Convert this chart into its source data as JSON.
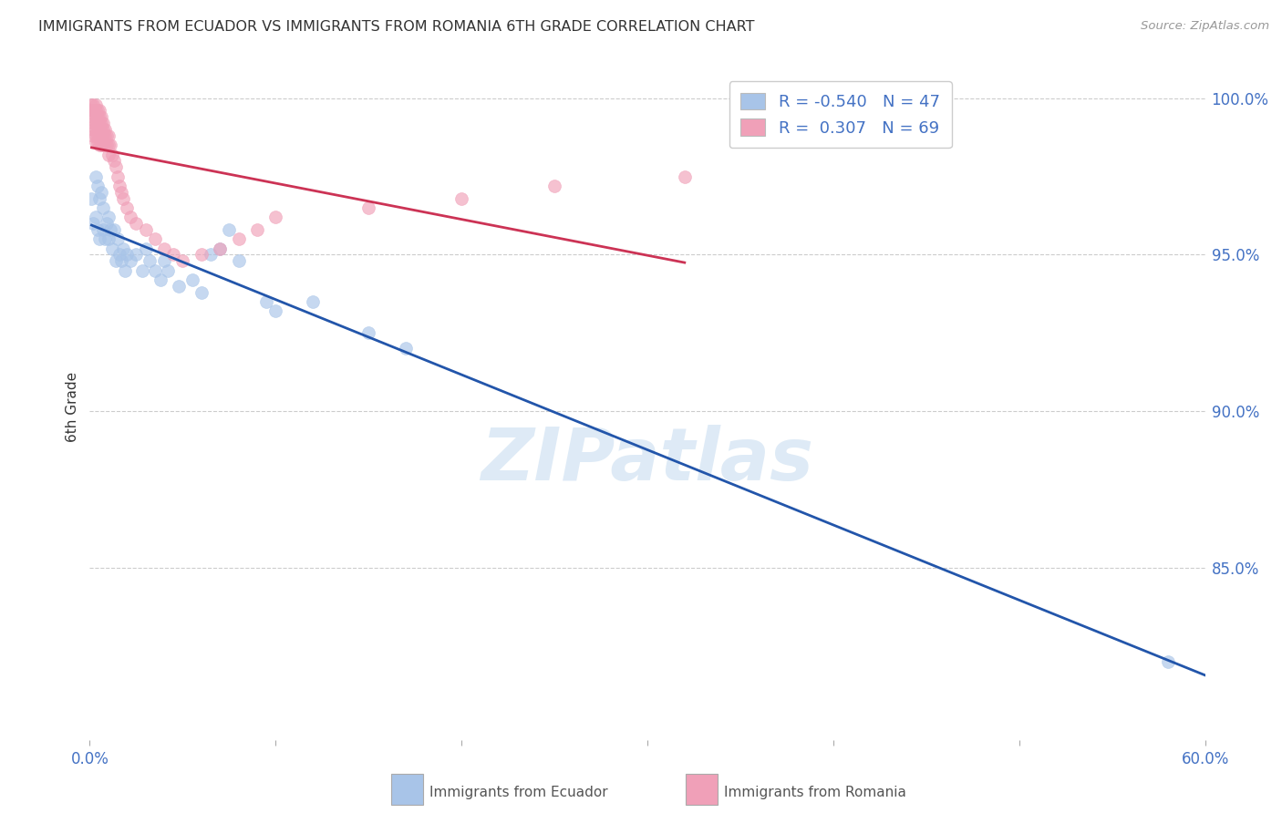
{
  "title": "IMMIGRANTS FROM ECUADOR VS IMMIGRANTS FROM ROMANIA 6TH GRADE CORRELATION CHART",
  "source": "Source: ZipAtlas.com",
  "ylabel": "6th Grade",
  "xlim": [
    0.0,
    0.6
  ],
  "ylim": [
    0.795,
    1.008
  ],
  "yticks_right": [
    0.85,
    0.9,
    0.95,
    1.0
  ],
  "ytick_right_labels": [
    "85.0%",
    "90.0%",
    "95.0%",
    "100.0%"
  ],
  "legend_r_ecuador": "-0.540",
  "legend_n_ecuador": "47",
  "legend_r_romania": "0.307",
  "legend_n_romania": "69",
  "ecuador_color": "#a8c4e8",
  "romania_color": "#f0a0b8",
  "ecuador_line_color": "#2255aa",
  "romania_line_color": "#cc3355",
  "background_color": "#ffffff",
  "watermark_text": "ZIPatlas",
  "ecuador_x": [
    0.001,
    0.002,
    0.003,
    0.003,
    0.004,
    0.004,
    0.005,
    0.005,
    0.006,
    0.007,
    0.007,
    0.008,
    0.009,
    0.01,
    0.01,
    0.011,
    0.012,
    0.013,
    0.014,
    0.015,
    0.016,
    0.017,
    0.018,
    0.019,
    0.02,
    0.022,
    0.025,
    0.028,
    0.03,
    0.032,
    0.035,
    0.038,
    0.04,
    0.042,
    0.048,
    0.055,
    0.06,
    0.065,
    0.07,
    0.075,
    0.08,
    0.095,
    0.1,
    0.12,
    0.15,
    0.17,
    0.58
  ],
  "ecuador_y": [
    0.968,
    0.96,
    0.975,
    0.962,
    0.972,
    0.958,
    0.968,
    0.955,
    0.97,
    0.965,
    0.958,
    0.955,
    0.96,
    0.962,
    0.955,
    0.958,
    0.952,
    0.958,
    0.948,
    0.955,
    0.95,
    0.948,
    0.952,
    0.945,
    0.95,
    0.948,
    0.95,
    0.945,
    0.952,
    0.948,
    0.945,
    0.942,
    0.948,
    0.945,
    0.94,
    0.942,
    0.938,
    0.95,
    0.952,
    0.958,
    0.948,
    0.935,
    0.932,
    0.935,
    0.925,
    0.92,
    0.82
  ],
  "romania_x": [
    0.001,
    0.001,
    0.001,
    0.002,
    0.002,
    0.002,
    0.002,
    0.002,
    0.003,
    0.003,
    0.003,
    0.003,
    0.003,
    0.003,
    0.003,
    0.004,
    0.004,
    0.004,
    0.004,
    0.004,
    0.004,
    0.005,
    0.005,
    0.005,
    0.005,
    0.005,
    0.005,
    0.006,
    0.006,
    0.006,
    0.006,
    0.006,
    0.007,
    0.007,
    0.007,
    0.007,
    0.008,
    0.008,
    0.008,
    0.009,
    0.009,
    0.01,
    0.01,
    0.01,
    0.011,
    0.012,
    0.013,
    0.014,
    0.015,
    0.016,
    0.017,
    0.018,
    0.02,
    0.022,
    0.025,
    0.03,
    0.035,
    0.04,
    0.045,
    0.05,
    0.06,
    0.07,
    0.08,
    0.09,
    0.1,
    0.15,
    0.2,
    0.25,
    0.32
  ],
  "romania_y": [
    0.998,
    0.996,
    0.994,
    0.998,
    0.996,
    0.992,
    0.99,
    0.988,
    0.998,
    0.996,
    0.994,
    0.992,
    0.99,
    0.988,
    0.986,
    0.996,
    0.994,
    0.992,
    0.99,
    0.988,
    0.986,
    0.996,
    0.994,
    0.992,
    0.99,
    0.988,
    0.985,
    0.994,
    0.992,
    0.99,
    0.988,
    0.985,
    0.992,
    0.99,
    0.988,
    0.985,
    0.99,
    0.988,
    0.985,
    0.988,
    0.985,
    0.988,
    0.985,
    0.982,
    0.985,
    0.982,
    0.98,
    0.978,
    0.975,
    0.972,
    0.97,
    0.968,
    0.965,
    0.962,
    0.96,
    0.958,
    0.955,
    0.952,
    0.95,
    0.948,
    0.95,
    0.952,
    0.955,
    0.958,
    0.962,
    0.965,
    0.968,
    0.972,
    0.975
  ]
}
